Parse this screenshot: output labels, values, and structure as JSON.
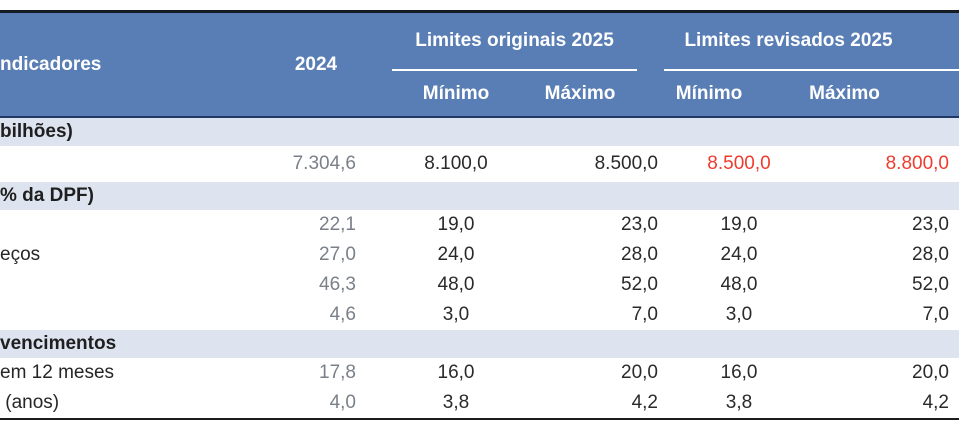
{
  "table": {
    "header": {
      "indicadores": "ndicadores",
      "year_2024": "2024",
      "group_originais": "Limites originais 2025",
      "group_revisados": "Limites revisados 2025",
      "minimo": "Mínimo",
      "maximo": "Máximo"
    },
    "rows": [
      {
        "type": "section",
        "label": "bilhões)"
      },
      {
        "type": "data",
        "label": "",
        "v2024": "7.304,6",
        "orig_min": "8.100,0",
        "orig_max": "8.500,0",
        "rev_min": "8.500,0",
        "rev_max": "8.800,0",
        "revised_highlight": true
      },
      {
        "type": "section",
        "label": "% da DPF)"
      },
      {
        "type": "data",
        "label": "",
        "v2024": "22,1",
        "orig_min": "19,0",
        "orig_max": "23,0",
        "rev_min": "19,0",
        "rev_max": "23,0",
        "revised_highlight": false
      },
      {
        "type": "data",
        "label": "eços",
        "v2024": "27,0",
        "orig_min": "24,0",
        "orig_max": "28,0",
        "rev_min": "24,0",
        "rev_max": "28,0",
        "revised_highlight": false
      },
      {
        "type": "data",
        "label": "",
        "v2024": "46,3",
        "orig_min": "48,0",
        "orig_max": "52,0",
        "rev_min": "48,0",
        "rev_max": "52,0",
        "revised_highlight": false
      },
      {
        "type": "data",
        "label": "",
        "v2024": "4,6",
        "orig_min": "3,0",
        "orig_max": "7,0",
        "rev_min": "3,0",
        "rev_max": "7,0",
        "revised_highlight": false
      },
      {
        "type": "section",
        "label": "vencimentos"
      },
      {
        "type": "data",
        "label": "em 12 meses",
        "v2024": "17,8",
        "orig_min": "16,0",
        "orig_max": "20,0",
        "rev_min": "16,0",
        "rev_max": "20,0",
        "revised_highlight": false
      },
      {
        "type": "data",
        "label": " (anos)",
        "v2024": "4,0",
        "orig_min": "3,8",
        "orig_max": "4,2",
        "rev_min": "3,8",
        "rev_max": "4,2",
        "revised_highlight": false
      }
    ]
  },
  "colors": {
    "header_bg": "#597eb5",
    "header_text": "#ffffff",
    "section_bg": "#dde4ef",
    "body_text": "#2a2a2a",
    "muted_2024": "#7a8089",
    "accent_red": "#ee3c2d",
    "header_top_border": "#141c24",
    "header_bottom_border": "#1f3864",
    "table_bottom_border": "#1c1c1c"
  }
}
